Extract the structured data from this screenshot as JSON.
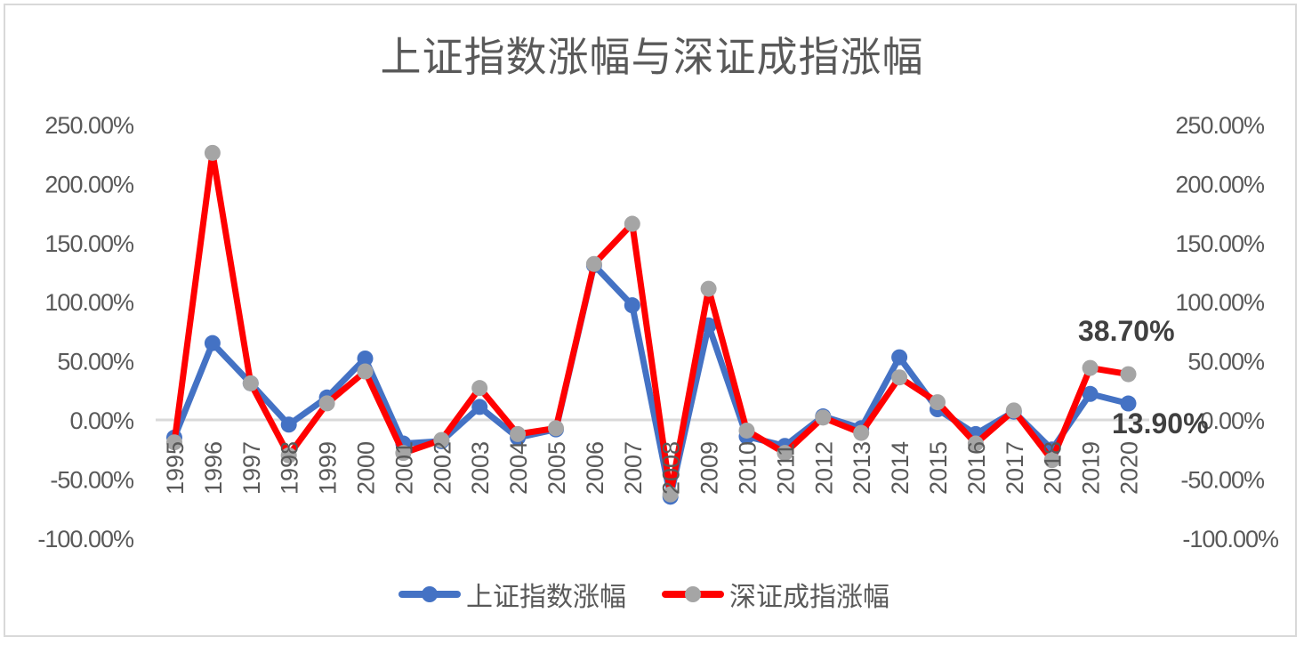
{
  "title": "上证指数涨幅与深证成指涨幅",
  "legend": {
    "series1": "上证指数涨幅",
    "series2": "深证成指涨幅"
  },
  "colors": {
    "series1_line": "#4472C4",
    "series1_marker": "#4472C4",
    "series2_line": "#FF0000",
    "series2_marker": "#A5A5A5",
    "zero_line": "#D9D9D9",
    "axis_text": "#595959",
    "frame": "#D9D9D9"
  },
  "axes": {
    "left_ticks": [
      "250.00%",
      "200.00%",
      "150.00%",
      "100.00%",
      "50.00%",
      "0.00%",
      "-50.00%",
      "-100.00%"
    ],
    "right_ticks": [
      "250.00%",
      "200.00%",
      "150.00%",
      "100.00%",
      "50.00%",
      "0.00%",
      "-50.00%",
      "-100.00%"
    ]
  },
  "data_labels": {
    "series2_last": "38.70%",
    "series1_last": "13.90%"
  },
  "chart_data": {
    "type": "line",
    "title": "上证指数涨幅与深证成指涨幅",
    "xlabel": "",
    "ylabel": "",
    "ylim": [
      -100,
      250
    ],
    "y_unit": "%",
    "grid": false,
    "legend_position": "bottom",
    "categories": [
      "1995",
      "1996",
      "1997",
      "1998",
      "1999",
      "2000",
      "2001",
      "2002",
      "2003",
      "2004",
      "2005",
      "2006",
      "2007",
      "2008",
      "2009",
      "2010",
      "2011",
      "2012",
      "2013",
      "2014",
      "2015",
      "2016",
      "2017",
      "2018",
      "2019",
      "2020"
    ],
    "series": [
      {
        "name": "上证指数涨幅",
        "values": [
          -15,
          65,
          31,
          -4,
          19,
          52,
          -20,
          -18,
          11,
          -15,
          -8,
          131,
          97,
          -65,
          80,
          -14,
          -22,
          3,
          -7,
          53,
          9,
          -12,
          7,
          -25,
          22,
          13.9
        ]
      },
      {
        "name": "深证成指涨幅",
        "values": [
          -19,
          226,
          31,
          -30,
          14,
          41,
          -28,
          -17,
          27,
          -12,
          -7,
          132,
          166,
          -63,
          111,
          -9,
          -28,
          2,
          -11,
          36,
          15,
          -20,
          8,
          -34,
          44,
          38.7
        ]
      }
    ],
    "annotations": [
      {
        "series": "深证成指涨幅",
        "category": "2020",
        "text": "38.70%"
      },
      {
        "series": "上证指数涨幅",
        "category": "2020",
        "text": "13.90%"
      }
    ]
  }
}
